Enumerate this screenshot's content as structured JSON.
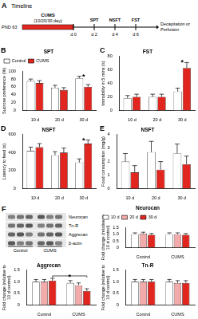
{
  "timeline": {
    "panel": "A",
    "title": "Timeline",
    "start": "PND 63",
    "phase": "CUMS",
    "phase_note": "(10/20/30 day)",
    "marks": [
      {
        "label": "d 0"
      },
      {
        "label": "d 2",
        "event": "SPT"
      },
      {
        "label": "d 4",
        "event": "NSFT"
      },
      {
        "label": "d 6",
        "event": "FST"
      }
    ],
    "end": [
      "Decapitation or",
      "Perfusion"
    ]
  },
  "chart_data": [
    {
      "type": "bar",
      "title": "SPT",
      "y_label": "Sucrose preference (%)",
      "categories": [
        "10 d",
        "20 d",
        "30 d"
      ],
      "series": [
        {
          "name": "Control",
          "color": "#ffffff",
          "values": [
            75,
            58,
            82
          ],
          "errors": [
            5,
            6,
            5
          ]
        },
        {
          "name": "CUMS",
          "color": "#e0261e",
          "values": [
            70,
            52,
            60
          ],
          "errors": [
            6,
            6,
            6
          ]
        }
      ],
      "ylim": [
        0,
        100
      ],
      "yticks": [
        0,
        20,
        40,
        60,
        80,
        100
      ],
      "grid": false,
      "legend": "top-left",
      "annotations": [
        {
          "text": "B"
        },
        {
          "text": "*",
          "category": "30 d"
        }
      ]
    },
    {
      "type": "bar",
      "title": "FST",
      "y_label": "Immobility in 5 mins (s)",
      "categories": [
        "10 d",
        "20 d",
        "30 d"
      ],
      "series": [
        {
          "name": "Control",
          "color": "#ffffff",
          "values": [
            18,
            20,
            28
          ],
          "errors": [
            4,
            4,
            5
          ]
        },
        {
          "name": "CUMS",
          "color": "#e0261e",
          "values": [
            20,
            20,
            63
          ],
          "errors": [
            4,
            4,
            8
          ]
        }
      ],
      "ylim": [
        0,
        80
      ],
      "yticks": [
        0,
        20,
        40,
        60,
        80
      ],
      "grid": false,
      "annotations": [
        {
          "text": "C"
        },
        {
          "text": "*",
          "category": "30 d"
        }
      ]
    },
    {
      "type": "bar",
      "title": "NSFT",
      "y_label": "Latency to feed (s)",
      "categories": [
        "10 d",
        "20 d",
        "30 d"
      ],
      "series": [
        {
          "name": "Control",
          "color": "#ffffff",
          "values": [
            420,
            370,
            290
          ],
          "errors": [
            40,
            40,
            40
          ]
        },
        {
          "name": "CUMS",
          "color": "#e0261e",
          "values": [
            460,
            400,
            500
          ],
          "errors": [
            40,
            50,
            40
          ]
        }
      ],
      "ylim": [
        0,
        600
      ],
      "yticks": [
        0,
        200,
        400,
        600
      ],
      "grid": false,
      "annotations": [
        {
          "text": "D"
        },
        {
          "text": "*",
          "category": "30 d"
        }
      ]
    },
    {
      "type": "bar",
      "title": "NSFT",
      "y_label": "Food consumption (mg/g)",
      "categories": [
        "10 d",
        "20 d",
        "30 d"
      ],
      "series": [
        {
          "name": "Control",
          "color": "#ffffff",
          "values": [
            2.0,
            2.7,
            2.6
          ],
          "errors": [
            0.6,
            0.8,
            0.7
          ]
        },
        {
          "name": "CUMS",
          "color": "#e0261e",
          "values": [
            1.2,
            1.4,
            1.8
          ],
          "errors": [
            0.5,
            0.6,
            0.6
          ]
        }
      ],
      "ylim": [
        0,
        4
      ],
      "yticks": [
        0,
        1,
        2,
        3,
        4
      ],
      "grid": false,
      "annotations": [
        {
          "text": "E"
        }
      ]
    },
    {
      "type": "bar",
      "title": "Neurocan",
      "y_label": [
        "Fold change (relative to",
        "10 d control)"
      ],
      "categories": [
        "Control",
        "CUMS"
      ],
      "series": [
        {
          "name": "10 d",
          "color": "#ffffff",
          "values": [
            1.0,
            1.0
          ],
          "errors": [
            0.1,
            0.1
          ]
        },
        {
          "name": "20 d",
          "color": "#f2aaaa",
          "values": [
            1.05,
            1.0
          ],
          "errors": [
            0.1,
            0.1
          ]
        },
        {
          "name": "30 d",
          "color": "#e0261e",
          "values": [
            0.95,
            0.95
          ],
          "errors": [
            0.1,
            0.1
          ]
        }
      ],
      "ylim": [
        0,
        1.5
      ],
      "yticks": [
        0,
        0.5,
        {
          "value": 1,
          "label": "1.0"
        },
        1.5
      ],
      "grid": false,
      "legend": "top-left"
    },
    {
      "type": "bar",
      "title": "Aggrecan",
      "y_label": [
        "Fold change (relative to",
        "10 d control)"
      ],
      "categories": [
        "Control",
        "CUMS"
      ],
      "series": [
        {
          "name": "10 d",
          "color": "#ffffff",
          "values": [
            1.0,
            0.95
          ],
          "errors": [
            0.1,
            0.1
          ]
        },
        {
          "name": "20 d",
          "color": "#f2aaaa",
          "values": [
            1.0,
            0.85
          ],
          "errors": [
            0.1,
            0.1
          ]
        },
        {
          "name": "30 d",
          "color": "#e0261e",
          "values": [
            1.05,
            0.6
          ],
          "errors": [
            0.1,
            0.1
          ]
        }
      ],
      "ylim": [
        0,
        1.5
      ],
      "yticks": [
        0,
        0.5,
        {
          "value": 1,
          "label": "1.0"
        },
        1.5
      ],
      "grid": false,
      "annotations": [
        {
          "text": "*",
          "from": {
            "category": "Control",
            "series": "30 d"
          },
          "to": {
            "category": "CUMS",
            "series": "30 d"
          }
        }
      ]
    },
    {
      "type": "bar",
      "title": "Tn-R",
      "y_label": [
        "Fold change (relative to",
        "10 d control)"
      ],
      "categories": [
        "Control",
        "CUMS"
      ],
      "series": [
        {
          "name": "10 d",
          "color": "#ffffff",
          "values": [
            1.0,
            1.0
          ],
          "errors": [
            0.1,
            0.1
          ]
        },
        {
          "name": "20 d",
          "color": "#f2aaaa",
          "values": [
            1.0,
            0.95
          ],
          "errors": [
            0.1,
            0.1
          ]
        },
        {
          "name": "30 d",
          "color": "#e0261e",
          "values": [
            1.0,
            0.95
          ],
          "errors": [
            0.1,
            0.1
          ]
        }
      ],
      "ylim": [
        0,
        1.5
      ],
      "yticks": [
        0,
        0.5,
        {
          "value": 1,
          "label": "1.0"
        },
        1.5
      ],
      "grid": false
    }
  ],
  "blot": {
    "panel": "F",
    "bands": [
      "Neurocan",
      "Tn-R",
      "Aggrecan",
      "β-actin"
    ],
    "groups": [
      "Control",
      "CUMS"
    ]
  }
}
